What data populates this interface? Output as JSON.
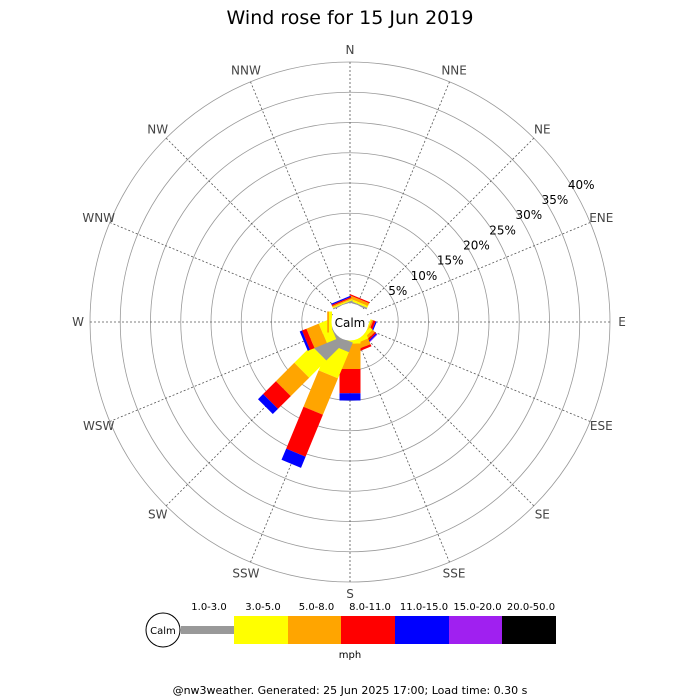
{
  "chart_data": {
    "type": "wind-rose",
    "title": "Wind rose for 15 Jun 2019",
    "radial_unit": "%",
    "rings": [
      5,
      10,
      15,
      20,
      25,
      30,
      35,
      40
    ],
    "ring_labels": [
      "5%",
      "10%",
      "15%",
      "20%",
      "25%",
      "30%",
      "35%",
      "40%"
    ],
    "rmax": 40,
    "directions": [
      "N",
      "NNE",
      "NE",
      "ENE",
      "E",
      "ESE",
      "SE",
      "SSE",
      "S",
      "SSW",
      "SW",
      "WSW",
      "W",
      "WNW",
      "NW",
      "NNW"
    ],
    "calm_label": "Calm",
    "speed_bins": [
      {
        "label": "1.0-3.0",
        "color": "#999999"
      },
      {
        "label": "3.0-5.0",
        "color": "#ffff00"
      },
      {
        "label": "5.0-8.0",
        "color": "#ffa500"
      },
      {
        "label": "8.0-11.0",
        "color": "#ff0000"
      },
      {
        "label": "11.0-15.0",
        "color": "#0000ff"
      },
      {
        "label": "15.0-20.0",
        "color": "#a020f0"
      },
      {
        "label": "20.0-50.0",
        "color": "#000000"
      }
    ],
    "speed_unit": "mph",
    "series": [
      {
        "name": "1.0-3.0",
        "values": [
          0,
          0.3,
          0,
          0,
          0,
          0,
          0,
          0,
          0,
          1.7,
          4.3,
          0.2,
          0,
          0,
          0,
          0.2
        ]
      },
      {
        "name": "3.0-5.0",
        "values": [
          0,
          0.3,
          0,
          0,
          0,
          0.2,
          0.6,
          0.7,
          0.6,
          4.7,
          4.0,
          1.7,
          0.5,
          0,
          0,
          0.2
        ]
      },
      {
        "name": "5.0-8.0",
        "values": [
          0,
          0.5,
          0,
          0,
          0,
          0.3,
          0.5,
          1.0,
          4.2,
          6.5,
          4.3,
          2.2,
          0.3,
          0,
          0,
          0.2
        ]
      },
      {
        "name": "8.0-11.0",
        "values": [
          0,
          0.2,
          0,
          0,
          0,
          0.4,
          0.3,
          0.4,
          4.0,
          7.5,
          3.0,
          0.8,
          0,
          0,
          0,
          0.2
        ]
      },
      {
        "name": "11.0-15.0",
        "values": [
          0,
          0,
          0,
          0,
          0,
          0.2,
          0.2,
          0,
          1.2,
          2.0,
          1.2,
          0.4,
          0,
          0,
          0,
          0.2
        ]
      },
      {
        "name": "15.0-20.0",
        "values": [
          0,
          0,
          0,
          0,
          0,
          0,
          0.1,
          0,
          0,
          0,
          0,
          0,
          0,
          0,
          0,
          0
        ]
      },
      {
        "name": "20.0-50.0",
        "values": [
          0,
          0,
          0,
          0,
          0,
          0,
          0,
          0,
          0,
          0,
          0,
          0,
          0,
          0,
          0,
          0
        ]
      }
    ]
  },
  "footer": "@nw3weather. Generated: 25 Jun 2025 17:00; Load time: 0.30 s"
}
